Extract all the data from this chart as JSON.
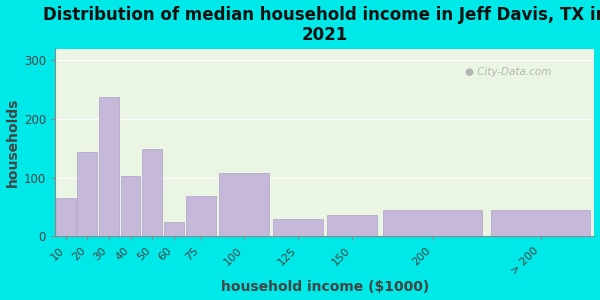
{
  "title": "Distribution of median household income in Jeff Davis, TX in\n2021",
  "xlabel": "household income ($1000)",
  "ylabel": "households",
  "bar_labels": [
    "10",
    "20",
    "30",
    "40",
    "50",
    "60",
    "75",
    "100",
    "125",
    "150",
    "200",
    "> 200"
  ],
  "bar_values": [
    65,
    143,
    238,
    102,
    148,
    25,
    68,
    108,
    30,
    37,
    44,
    44
  ],
  "bar_edges": [
    0,
    10,
    20,
    30,
    40,
    50,
    60,
    75,
    100,
    125,
    150,
    200,
    250
  ],
  "bar_color": "#c5b8d8",
  "bar_edge_color": "#b0a0c8",
  "ylim": [
    0,
    320
  ],
  "yticks": [
    0,
    100,
    200,
    300
  ],
  "bg_color": "#00e8e8",
  "plot_bg_color": "#eaf5e4",
  "watermark": "City-Data.com",
  "title_fontsize": 12,
  "axis_label_fontsize": 10,
  "tick_label_color": "#444444",
  "xlabel_color": "#444444",
  "ylabel_color": "#444444"
}
